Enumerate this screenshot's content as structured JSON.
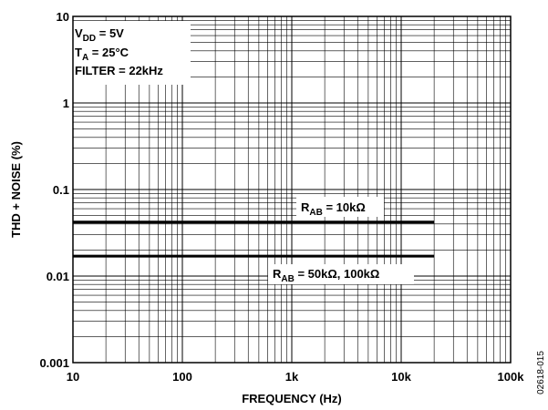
{
  "chart_data": {
    "type": "line",
    "title": "",
    "xlabel": "FREQUENCY (Hz)",
    "ylabel": "THD + NOISE (%)",
    "x_scale": "log",
    "y_scale": "log",
    "xlim": [
      10,
      100000
    ],
    "ylim": [
      0.001,
      10
    ],
    "grid": true,
    "x_tick_labels": [
      "10",
      "100",
      "1k",
      "10k",
      "100k"
    ],
    "y_tick_labels": [
      "0.001",
      "0.01",
      "0.1",
      "1",
      "10"
    ],
    "conditions": [
      {
        "main": "V",
        "sub": "DD",
        "rest": " = 5V"
      },
      {
        "main": "T",
        "sub": "A",
        "rest": " = 25°C"
      },
      {
        "main": "FILTER = 22kHz",
        "sub": "",
        "rest": ""
      }
    ],
    "series": [
      {
        "label_main": "R",
        "label_sub": "AB",
        "label_rest": " = 10kΩ",
        "x": [
          10,
          20000
        ],
        "y": [
          0.042,
          0.042
        ]
      },
      {
        "label_main": "R",
        "label_sub": "AB",
        "label_rest": " = 50kΩ, 100kΩ",
        "x": [
          10,
          20000
        ],
        "y": [
          0.017,
          0.017
        ]
      }
    ],
    "figure_id": "02618-015"
  }
}
